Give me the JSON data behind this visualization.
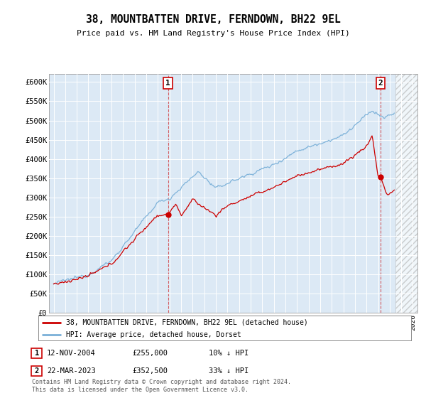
{
  "title": "38, MOUNTBATTEN DRIVE, FERNDOWN, BH22 9EL",
  "subtitle": "Price paid vs. HM Land Registry's House Price Index (HPI)",
  "ylim": [
    0,
    620000
  ],
  "yticks": [
    0,
    50000,
    100000,
    150000,
    200000,
    250000,
    300000,
    350000,
    400000,
    450000,
    500000,
    550000,
    600000
  ],
  "ytick_labels": [
    "£0",
    "£50K",
    "£100K",
    "£150K",
    "£200K",
    "£250K",
    "£300K",
    "£350K",
    "£400K",
    "£450K",
    "£500K",
    "£550K",
    "£600K"
  ],
  "background_color": "#dce9f5",
  "hpi_color": "#7ab0d8",
  "price_color": "#cc0000",
  "sale1_year": 2004.87,
  "sale1_price": 255000,
  "sale1_date": "12-NOV-2004",
  "sale1_pct": "10% ↓ HPI",
  "sale2_year": 2023.21,
  "sale2_price": 352500,
  "sale2_date": "22-MAR-2023",
  "sale2_pct": "33% ↓ HPI",
  "legend_label1": "38, MOUNTBATTEN DRIVE, FERNDOWN, BH22 9EL (detached house)",
  "legend_label2": "HPI: Average price, detached house, Dorset",
  "footer": "Contains HM Land Registry data © Crown copyright and database right 2024.\nThis data is licensed under the Open Government Licence v3.0.",
  "hatch_start": 2024.5,
  "xlim": [
    1994.6,
    2026.4
  ]
}
